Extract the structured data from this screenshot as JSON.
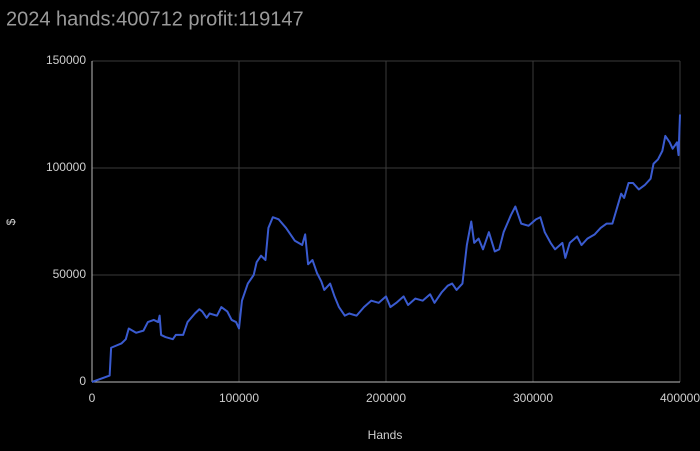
{
  "chart_data": {
    "type": "line",
    "title": "2024 hands:400712 profit:119147",
    "x_label": "Hands",
    "y_label": "$",
    "x": [
      0,
      12000,
      13000,
      20000,
      23000,
      25000,
      30000,
      35000,
      38000,
      42000,
      45000,
      46000,
      47000,
      50000,
      55000,
      57000,
      62000,
      65000,
      70000,
      73000,
      75000,
      78000,
      80000,
      85000,
      88000,
      92000,
      95000,
      98000,
      100000,
      102000,
      106000,
      110000,
      112000,
      115000,
      118000,
      120000,
      123000,
      127000,
      132000,
      138000,
      143000,
      145000,
      147000,
      150000,
      153000,
      156000,
      158000,
      162000,
      165000,
      168000,
      172000,
      175000,
      180000,
      185000,
      190000,
      195000,
      200000,
      203000,
      207000,
      212000,
      215000,
      220000,
      225000,
      230000,
      233000,
      238000,
      242000,
      245000,
      248000,
      252000,
      255000,
      258000,
      260000,
      263000,
      266000,
      270000,
      274000,
      277000,
      280000,
      285000,
      288000,
      292000,
      297000,
      302000,
      305000,
      308000,
      312000,
      315000,
      320000,
      322000,
      325000,
      330000,
      333000,
      337000,
      342000,
      346000,
      350000,
      354000,
      357000,
      360000,
      362000,
      365000,
      368000,
      372000,
      376000,
      380000,
      382000,
      385000,
      388000,
      390000,
      393000,
      395000,
      398000,
      399000,
      400000
    ],
    "series": [
      {
        "name": "profit",
        "color": "#3a5bd0",
        "values": [
          0,
          3000,
          16000,
          18000,
          20000,
          25000,
          23000,
          24000,
          28000,
          29000,
          28000,
          31000,
          22000,
          21000,
          20000,
          22000,
          22000,
          28000,
          32000,
          34000,
          33000,
          30000,
          32000,
          31000,
          35000,
          33000,
          29000,
          28000,
          25000,
          38000,
          46000,
          50000,
          56000,
          59000,
          57000,
          72000,
          77000,
          76000,
          72000,
          66000,
          64000,
          69000,
          55000,
          57000,
          51000,
          47000,
          43000,
          46000,
          40000,
          35000,
          31000,
          32000,
          31000,
          35000,
          38000,
          37000,
          40000,
          35000,
          37000,
          40000,
          36000,
          39000,
          38000,
          41000,
          37000,
          42000,
          45000,
          46000,
          43000,
          46000,
          64000,
          75000,
          65000,
          67000,
          62000,
          70000,
          61000,
          62000,
          70000,
          78000,
          82000,
          74000,
          73000,
          76000,
          77000,
          70000,
          65000,
          62000,
          65000,
          58000,
          65000,
          68000,
          64000,
          67000,
          69000,
          72000,
          74000,
          74000,
          81000,
          88000,
          86000,
          93000,
          93000,
          90000,
          92000,
          95000,
          102000,
          104000,
          108000,
          115000,
          112000,
          109000,
          112000,
          106000,
          125000
        ]
      }
    ],
    "xlim": [
      0,
      400000
    ],
    "ylim": [
      0,
      150000
    ],
    "xticks": [
      0,
      100000,
      200000,
      300000,
      400000
    ],
    "yticks": [
      0,
      50000,
      100000,
      150000
    ],
    "grid": true
  }
}
